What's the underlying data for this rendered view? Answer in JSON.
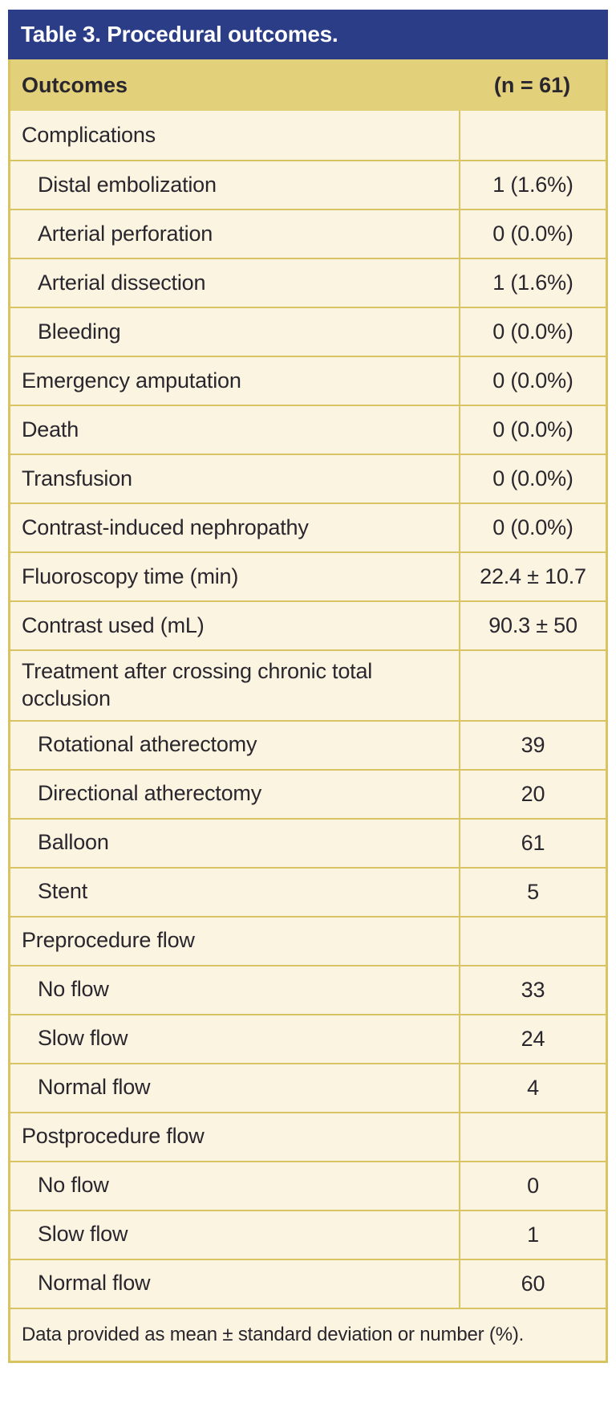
{
  "table": {
    "title": "Table 3. Procedural outcomes.",
    "columns": {
      "outcomes": "Outcomes",
      "n": "(n = 61)"
    },
    "rows": [
      {
        "label": "Complications",
        "value": "",
        "indent": false
      },
      {
        "label": "Distal embolization",
        "value": "1 (1.6%)",
        "indent": true
      },
      {
        "label": "Arterial perforation",
        "value": "0 (0.0%)",
        "indent": true
      },
      {
        "label": "Arterial dissection",
        "value": "1 (1.6%)",
        "indent": true
      },
      {
        "label": "Bleeding",
        "value": "0 (0.0%)",
        "indent": true
      },
      {
        "label": "Emergency amputation",
        "value": "0 (0.0%)",
        "indent": false
      },
      {
        "label": "Death",
        "value": "0 (0.0%)",
        "indent": false
      },
      {
        "label": "Transfusion",
        "value": "0 (0.0%)",
        "indent": false
      },
      {
        "label": "Contrast-induced nephropathy",
        "value": "0 (0.0%)",
        "indent": false
      },
      {
        "label": "Fluoroscopy time (min)",
        "value": "22.4 ± 10.7",
        "indent": false
      },
      {
        "label": "Contrast used (mL)",
        "value": "90.3 ± 50",
        "indent": false
      },
      {
        "label": "Treatment after crossing chronic total occlusion",
        "value": "",
        "indent": false
      },
      {
        "label": "Rotational atherectomy",
        "value": "39",
        "indent": true
      },
      {
        "label": "Directional atherectomy",
        "value": "20",
        "indent": true
      },
      {
        "label": "Balloon",
        "value": "61",
        "indent": true
      },
      {
        "label": "Stent",
        "value": "5",
        "indent": true
      },
      {
        "label": "Preprocedure flow",
        "value": "",
        "indent": false
      },
      {
        "label": "No flow",
        "value": "33",
        "indent": true
      },
      {
        "label": "Slow flow",
        "value": "24",
        "indent": true
      },
      {
        "label": "Normal flow",
        "value": "4",
        "indent": true
      },
      {
        "label": "Postprocedure flow",
        "value": "",
        "indent": false
      },
      {
        "label": "No flow",
        "value": "0",
        "indent": true
      },
      {
        "label": "Slow flow",
        "value": "1",
        "indent": true
      },
      {
        "label": "Normal flow",
        "value": "60",
        "indent": true
      }
    ],
    "footnote": "Data provided as mean ± standard deviation or number (%).",
    "colors": {
      "title_bar": "#2B3D87",
      "header_band": "#E2D07A",
      "row_background": "#FBF4E0",
      "rule": "#D8C462",
      "text": "#29262E",
      "title_text": "#FFFFFF"
    }
  }
}
